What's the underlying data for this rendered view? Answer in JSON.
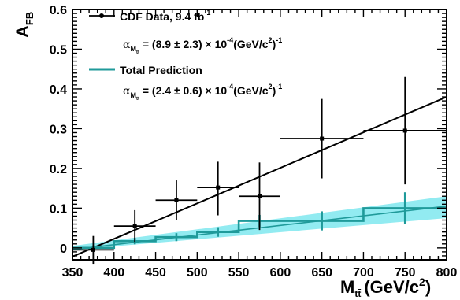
{
  "chart_data": {
    "type": "line",
    "xlabel": "M",
    "xlabel_sub": "tt̄",
    "xlabel_units": "(GeV/c",
    "xlabel_units_sup": "2",
    "xlabel_units_end": ")",
    "ylabel": "A",
    "ylabel_sub": "FB",
    "xlim": [
      350,
      800
    ],
    "ylim": [
      -0.03,
      0.6
    ],
    "x_ticks": [
      350,
      400,
      450,
      500,
      550,
      600,
      650,
      700,
      750,
      800
    ],
    "y_ticks": [
      0,
      0.1,
      0.2,
      0.3,
      0.4,
      0.5,
      0.6
    ],
    "y_tick_labels": [
      "0",
      "0.1",
      "0.2",
      "0.3",
      "0.4",
      "0.5",
      "0.6"
    ],
    "grid": false,
    "legend_position": "top-left",
    "colors": {
      "data": "#000000",
      "prediction": "#1f9a9a",
      "band": "#7fe8ee"
    },
    "legend": {
      "data_label": "CDF Data, 9.4  fb",
      "data_label_sup": "-1",
      "data_slope_sym": "α",
      "data_slope_sub": "M",
      "data_slope_subsub": "tt",
      "data_slope_value": " = (8.9 ± 2.3) × 10",
      "data_slope_exp": "-4",
      "data_slope_unit": "(GeV/c",
      "data_slope_unit_sup": "2",
      "data_slope_unit_end": ")",
      "data_slope_unit_exp": "-1",
      "pred_label": "Total Prediction",
      "pred_slope_sym": "α",
      "pred_slope_sub": "M",
      "pred_slope_subsub": "tt",
      "pred_slope_value": " = (2.4 ± 0.6) × 10",
      "pred_slope_exp": "-4",
      "pred_slope_unit": "(GeV/c",
      "pred_slope_unit_sup": "2",
      "pred_slope_unit_end": ")",
      "pred_slope_unit_exp": "-1"
    },
    "series": [
      {
        "name": "CDF Data, 9.4 fb-1",
        "kind": "data",
        "points": [
          {
            "x": 375,
            "y": -0.005,
            "xerr": [
              25,
              25
            ],
            "yerr": [
              0.035,
              0.035
            ]
          },
          {
            "x": 425,
            "y": 0.055,
            "xerr": [
              25,
              25
            ],
            "yerr": [
              0.04,
              0.04
            ]
          },
          {
            "x": 475,
            "y": 0.12,
            "xerr": [
              25,
              25
            ],
            "yerr": [
              0.05,
              0.05
            ]
          },
          {
            "x": 525,
            "y": 0.152,
            "xerr": [
              25,
              25
            ],
            "yerr": [
              0.07,
              0.065
            ]
          },
          {
            "x": 575,
            "y": 0.13,
            "xerr": [
              25,
              25
            ],
            "yerr": [
              0.085,
              0.085
            ]
          },
          {
            "x": 650,
            "y": 0.275,
            "xerr": [
              50,
              50
            ],
            "yerr": [
              0.1,
              0.1
            ]
          },
          {
            "x": 750,
            "y": 0.295,
            "xerr": [
              50,
              50
            ],
            "yerr": [
              0.135,
              0.135
            ]
          }
        ]
      },
      {
        "name": "Total Prediction",
        "kind": "prediction",
        "bins": [
          {
            "x0": 350,
            "x1": 400,
            "y": 0.0,
            "yerr": 0.006
          },
          {
            "x0": 400,
            "x1": 450,
            "y": 0.017,
            "yerr": 0.008
          },
          {
            "x0": 450,
            "x1": 500,
            "y": 0.027,
            "yerr": 0.01
          },
          {
            "x0": 500,
            "x1": 550,
            "y": 0.04,
            "yerr": 0.012
          },
          {
            "x0": 550,
            "x1": 600,
            "y": 0.068,
            "yerr": 0.015
          },
          {
            "x0": 600,
            "x1": 700,
            "y": 0.068,
            "yerr": 0.024
          },
          {
            "x0": 700,
            "x1": 800,
            "y": 0.1,
            "yerr": 0.04
          }
        ]
      }
    ],
    "fits": [
      {
        "name": "data-fit",
        "x0": 350,
        "y0": -0.022,
        "x1": 800,
        "y1": 0.38
      },
      {
        "name": "prediction-fit",
        "x0": 350,
        "y0": -0.004,
        "x1": 800,
        "y1": 0.105
      }
    ],
    "band": {
      "x": [
        350,
        800
      ],
      "y_low": [
        -0.005,
        0.075
      ],
      "y_high": [
        0.005,
        0.13
      ]
    }
  }
}
